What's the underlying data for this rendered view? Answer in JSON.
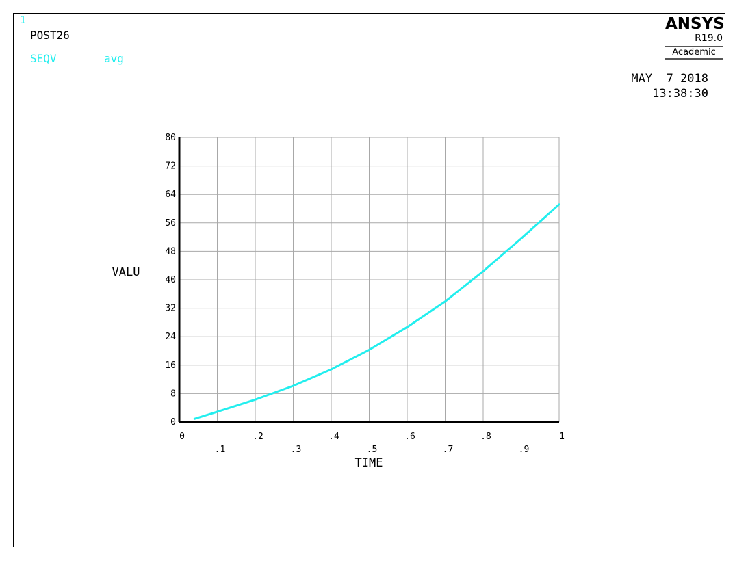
{
  "header": {
    "window_number": "1",
    "processor": "POST26",
    "variable_name": "SEQV",
    "variable_mode": "avg",
    "date": "MAY  7 2018",
    "time": "13:38:30"
  },
  "logo": {
    "name": "ANSYS",
    "version": "R19.0",
    "edition": "Academic"
  },
  "colors": {
    "curve": "#22eeee",
    "frame": "#000000",
    "grid": "#a8a8a8",
    "text": "#000000"
  },
  "chart_data": {
    "type": "line",
    "title": "",
    "xlabel": "TIME",
    "ylabel": "VALU",
    "xlim": [
      0,
      1
    ],
    "ylim": [
      0,
      80
    ],
    "x_ticks": [
      "0",
      ".1",
      ".2",
      ".3",
      ".4",
      ".5",
      ".6",
      ".7",
      ".8",
      ".9",
      "1"
    ],
    "y_ticks": [
      "0",
      "8",
      "16",
      "24",
      "32",
      "40",
      "48",
      "56",
      "64",
      "72",
      "80"
    ],
    "grid": true,
    "series": [
      {
        "color": "#22eeee",
        "x": [
          0.04,
          0.1,
          0.2,
          0.3,
          0.4,
          0.5,
          0.6,
          0.7,
          0.8,
          0.9,
          1.0
        ],
        "y": [
          0.9,
          2.9,
          6.3,
          10.2,
          14.8,
          20.3,
          26.7,
          33.9,
          42.4,
          51.6,
          61.2
        ]
      }
    ]
  }
}
